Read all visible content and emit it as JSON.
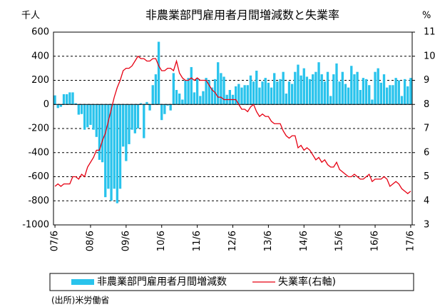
{
  "chart_data": {
    "type": "bar",
    "title": "非農業部門雇用者月間増減数と失業率",
    "y_unit": "千人",
    "y2_unit": "%",
    "source": "(出所)米労働省",
    "categories": [
      "07/6",
      null,
      null,
      null,
      null,
      null,
      null,
      null,
      null,
      null,
      null,
      null,
      "08/6",
      null,
      null,
      null,
      null,
      null,
      null,
      null,
      null,
      null,
      null,
      null,
      "09/6",
      null,
      null,
      null,
      null,
      null,
      null,
      null,
      null,
      null,
      null,
      null,
      "10/6",
      null,
      null,
      null,
      null,
      null,
      null,
      null,
      null,
      null,
      null,
      null,
      "11/6",
      null,
      null,
      null,
      null,
      null,
      null,
      null,
      null,
      null,
      null,
      null,
      "12/6",
      null,
      null,
      null,
      null,
      null,
      null,
      null,
      null,
      null,
      null,
      null,
      "13/6",
      null,
      null,
      null,
      null,
      null,
      null,
      null,
      null,
      null,
      null,
      null,
      "14/6",
      null,
      null,
      null,
      null,
      null,
      null,
      null,
      null,
      null,
      null,
      null,
      "15/6",
      null,
      null,
      null,
      null,
      null,
      null,
      null,
      null,
      null,
      null,
      null,
      "16/6",
      null,
      null,
      null,
      null,
      null,
      null,
      null,
      null,
      null,
      null,
      null,
      "17/6"
    ],
    "series": [
      {
        "name": "非農業部門雇用者月間増減数",
        "type": "bar",
        "color": "#29c3ec",
        "values": [
          75,
          -30,
          -20,
          85,
          85,
          100,
          100,
          10,
          -85,
          -80,
          -210,
          -190,
          -170,
          -210,
          -270,
          -460,
          -480,
          -770,
          -700,
          -800,
          -700,
          -820,
          -700,
          -350,
          -470,
          -330,
          -210,
          -240,
          -200,
          10,
          -280,
          20,
          -50,
          160,
          250,
          520,
          -130,
          -80,
          -10,
          -50,
          260,
          120,
          90,
          40,
          200,
          220,
          310,
          100,
          220,
          70,
          110,
          220,
          200,
          140,
          210,
          350,
          260,
          230,
          80,
          120,
          80,
          150,
          170,
          140,
          160,
          160,
          240,
          190,
          280,
          140,
          190,
          220,
          180,
          140,
          260,
          190,
          210,
          270,
          90,
          190,
          170,
          270,
          330,
          240,
          300,
          230,
          210,
          250,
          270,
          350,
          250,
          190,
          270,
          70,
          250,
          340,
          190,
          270,
          170,
          140,
          320,
          250,
          270,
          120,
          220,
          210,
          160,
          40,
          270,
          300,
          180,
          250,
          140,
          160,
          160,
          220,
          200,
          70,
          210,
          150,
          220
        ]
      },
      {
        "name": "失業率(右軸)",
        "type": "line",
        "axis": "y2",
        "color": "#e60012",
        "values": [
          4.6,
          4.7,
          4.6,
          4.7,
          4.7,
          4.7,
          5.0,
          5.0,
          4.9,
          5.1,
          5.0,
          5.4,
          5.6,
          5.8,
          6.1,
          6.1,
          6.5,
          6.8,
          7.3,
          7.8,
          8.3,
          8.7,
          9.0,
          9.4,
          9.5,
          9.5,
          9.6,
          9.8,
          10.0,
          9.9,
          9.9,
          9.8,
          9.8,
          9.9,
          9.9,
          9.6,
          9.4,
          9.4,
          9.5,
          9.5,
          9.4,
          9.8,
          9.3,
          9.1,
          9.0,
          9.0,
          9.1,
          9.0,
          9.1,
          9.0,
          9.0,
          9.0,
          8.8,
          8.6,
          8.5,
          8.3,
          8.3,
          8.2,
          8.2,
          8.2,
          8.2,
          8.2,
          8.0,
          7.8,
          7.8,
          7.7,
          7.9,
          8.0,
          7.7,
          7.5,
          7.6,
          7.5,
          7.5,
          7.3,
          7.2,
          7.2,
          7.2,
          6.9,
          6.7,
          6.6,
          6.7,
          6.7,
          6.2,
          6.3,
          6.1,
          6.2,
          6.1,
          5.9,
          5.7,
          5.8,
          5.6,
          5.7,
          5.5,
          5.4,
          5.4,
          5.6,
          5.3,
          5.2,
          5.1,
          5.0,
          5.0,
          5.1,
          5.0,
          4.9,
          4.9,
          5.0,
          5.1,
          4.8,
          4.9,
          4.9,
          4.9,
          5.0,
          4.9,
          4.6,
          4.7,
          4.8,
          4.7,
          4.5,
          4.4,
          4.3,
          4.4
        ]
      }
    ],
    "ylim": [
      -1000,
      600
    ],
    "yticks": [
      -1000,
      -800,
      -600,
      -400,
      -200,
      0,
      200,
      400,
      600
    ],
    "y2lim": [
      3,
      11
    ],
    "y2ticks": [
      3,
      4,
      5,
      6,
      7,
      8,
      9,
      10,
      11
    ],
    "grid": true
  }
}
